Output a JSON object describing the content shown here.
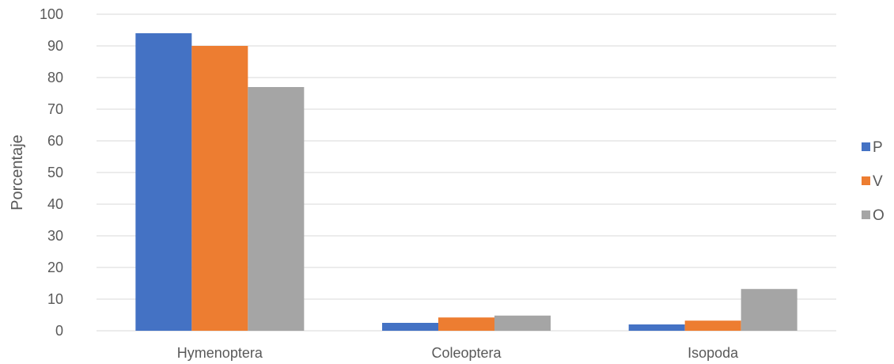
{
  "chart_data": {
    "type": "bar",
    "title": "",
    "xlabel": "",
    "ylabel": "Porcentaje",
    "categories": [
      "Hymenoptera",
      "Coleoptera",
      "Isopoda"
    ],
    "series": [
      {
        "name": "P",
        "values": [
          94,
          2.5,
          2
        ],
        "color": "#4472c4"
      },
      {
        "name": "V",
        "values": [
          90,
          4.2,
          3.2
        ],
        "color": "#ed7d31"
      },
      {
        "name": "O",
        "values": [
          77,
          4.8,
          13.2
        ],
        "color": "#a5a5a5"
      }
    ],
    "ylim": [
      0,
      100
    ],
    "yticks": [
      "0",
      "10",
      "20",
      "30",
      "40",
      "50",
      "60",
      "70",
      "80",
      "90",
      "100"
    ],
    "grid": true,
    "legend_position": "right"
  }
}
